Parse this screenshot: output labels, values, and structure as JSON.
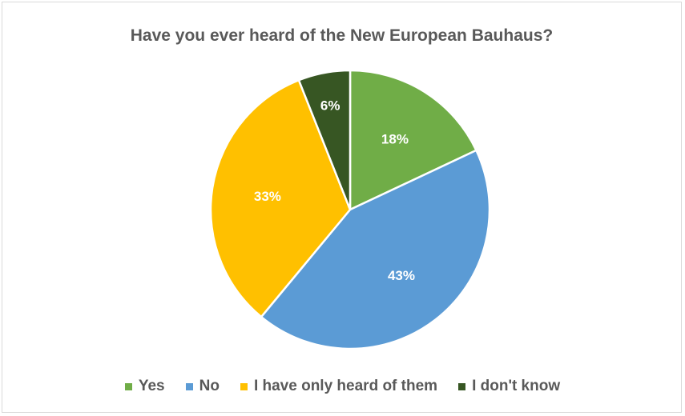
{
  "chart_data": {
    "type": "pie",
    "title": "Have you ever heard of the New European Bauhaus?",
    "categories": [
      "Yes",
      "No",
      "I have only heard of them",
      "I don't know"
    ],
    "values": [
      18,
      43,
      33,
      6
    ],
    "data_labels": [
      "18%",
      "43%",
      "33%",
      "6%"
    ],
    "colors": [
      "#70ad47",
      "#5b9bd5",
      "#ffc000",
      "#375623"
    ],
    "legend": "bottom",
    "start_angle": "12 o'clock",
    "direction": "clockwise"
  }
}
